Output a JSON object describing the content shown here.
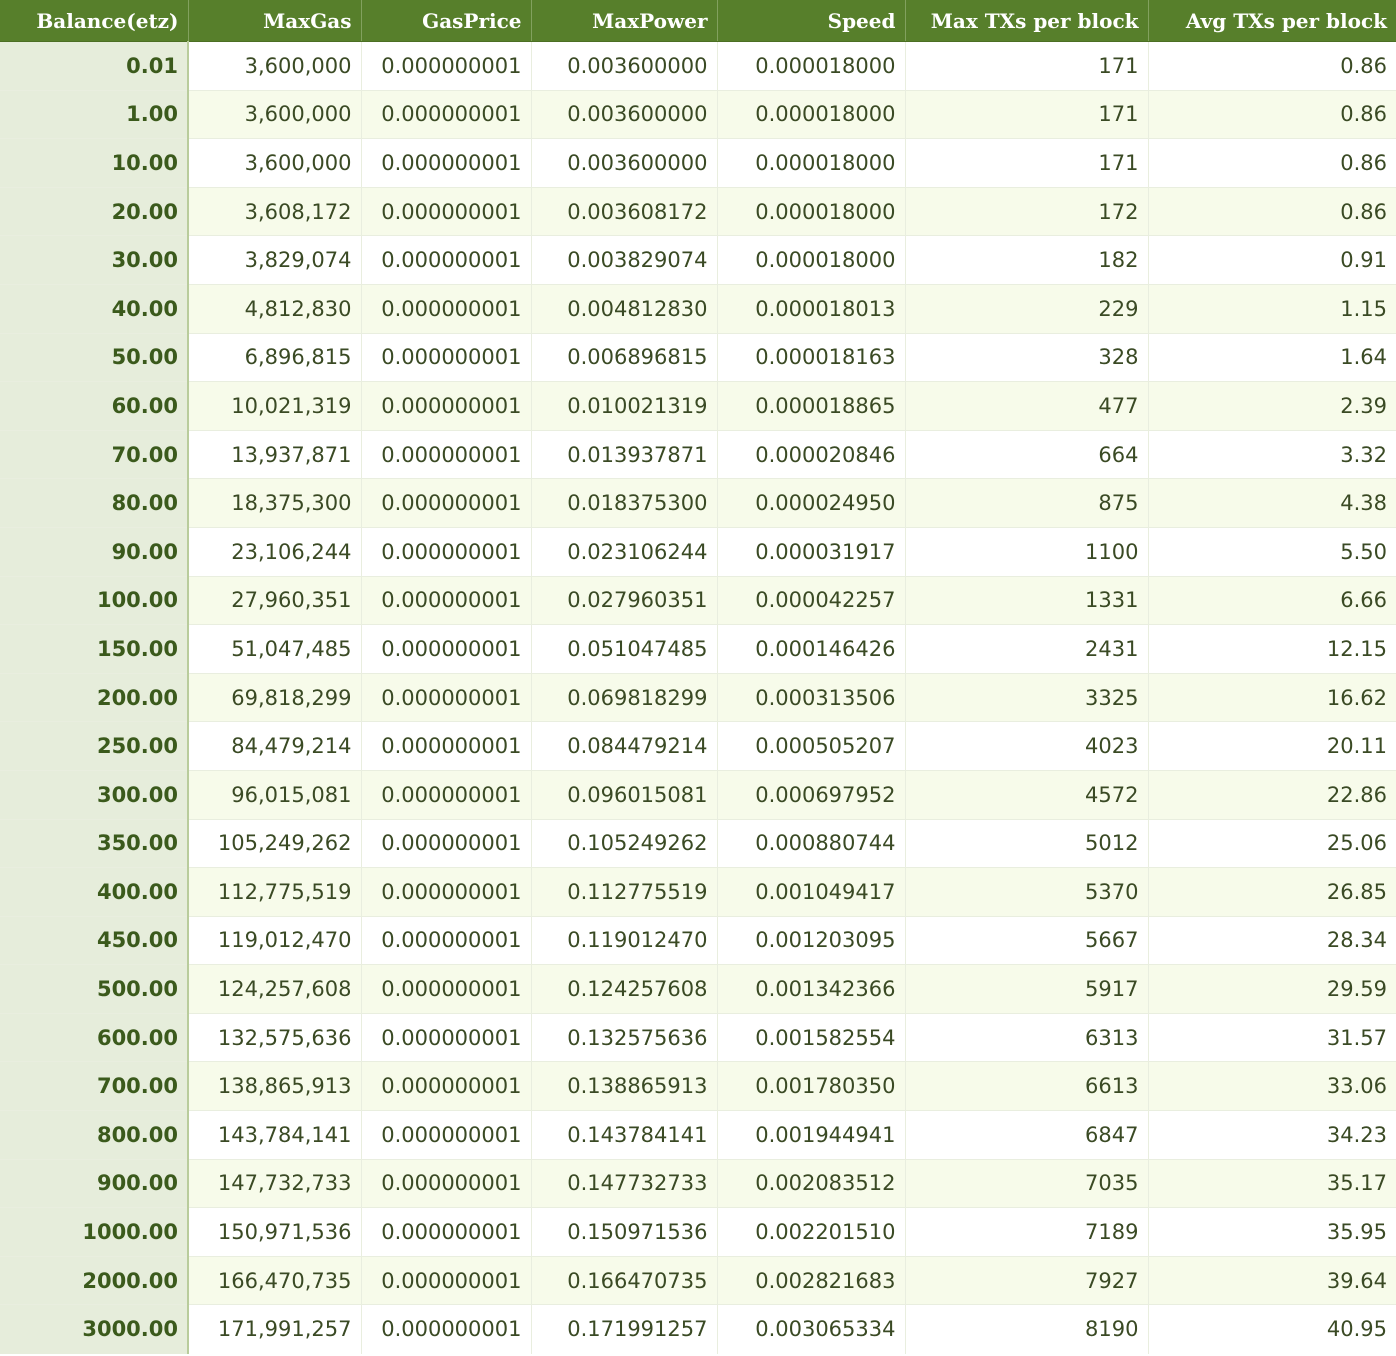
{
  "table": {
    "headers": [
      "Balance(etz)",
      "MaxGas",
      "GasPrice",
      "MaxPower",
      "Speed",
      "Max TXs per block",
      "Avg TXs per block"
    ],
    "rows": [
      [
        "0.01",
        "3,600,000",
        "0.000000001",
        "0.003600000",
        "0.000018000",
        "171",
        "0.86"
      ],
      [
        "1.00",
        "3,600,000",
        "0.000000001",
        "0.003600000",
        "0.000018000",
        "171",
        "0.86"
      ],
      [
        "10.00",
        "3,600,000",
        "0.000000001",
        "0.003600000",
        "0.000018000",
        "171",
        "0.86"
      ],
      [
        "20.00",
        "3,608,172",
        "0.000000001",
        "0.003608172",
        "0.000018000",
        "172",
        "0.86"
      ],
      [
        "30.00",
        "3,829,074",
        "0.000000001",
        "0.003829074",
        "0.000018000",
        "182",
        "0.91"
      ],
      [
        "40.00",
        "4,812,830",
        "0.000000001",
        "0.004812830",
        "0.000018013",
        "229",
        "1.15"
      ],
      [
        "50.00",
        "6,896,815",
        "0.000000001",
        "0.006896815",
        "0.000018163",
        "328",
        "1.64"
      ],
      [
        "60.00",
        "10,021,319",
        "0.000000001",
        "0.010021319",
        "0.000018865",
        "477",
        "2.39"
      ],
      [
        "70.00",
        "13,937,871",
        "0.000000001",
        "0.013937871",
        "0.000020846",
        "664",
        "3.32"
      ],
      [
        "80.00",
        "18,375,300",
        "0.000000001",
        "0.018375300",
        "0.000024950",
        "875",
        "4.38"
      ],
      [
        "90.00",
        "23,106,244",
        "0.000000001",
        "0.023106244",
        "0.000031917",
        "1100",
        "5.50"
      ],
      [
        "100.00",
        "27,960,351",
        "0.000000001",
        "0.027960351",
        "0.000042257",
        "1331",
        "6.66"
      ],
      [
        "150.00",
        "51,047,485",
        "0.000000001",
        "0.051047485",
        "0.000146426",
        "2431",
        "12.15"
      ],
      [
        "200.00",
        "69,818,299",
        "0.000000001",
        "0.069818299",
        "0.000313506",
        "3325",
        "16.62"
      ],
      [
        "250.00",
        "84,479,214",
        "0.000000001",
        "0.084479214",
        "0.000505207",
        "4023",
        "20.11"
      ],
      [
        "300.00",
        "96,015,081",
        "0.000000001",
        "0.096015081",
        "0.000697952",
        "4572",
        "22.86"
      ],
      [
        "350.00",
        "105,249,262",
        "0.000000001",
        "0.105249262",
        "0.000880744",
        "5012",
        "25.06"
      ],
      [
        "400.00",
        "112,775,519",
        "0.000000001",
        "0.112775519",
        "0.001049417",
        "5370",
        "26.85"
      ],
      [
        "450.00",
        "119,012,470",
        "0.000000001",
        "0.119012470",
        "0.001203095",
        "5667",
        "28.34"
      ],
      [
        "500.00",
        "124,257,608",
        "0.000000001",
        "0.124257608",
        "0.001342366",
        "5917",
        "29.59"
      ],
      [
        "600.00",
        "132,575,636",
        "0.000000001",
        "0.132575636",
        "0.001582554",
        "6313",
        "31.57"
      ],
      [
        "700.00",
        "138,865,913",
        "0.000000001",
        "0.138865913",
        "0.001780350",
        "6613",
        "33.06"
      ],
      [
        "800.00",
        "143,784,141",
        "0.000000001",
        "0.143784141",
        "0.001944941",
        "6847",
        "34.23"
      ],
      [
        "900.00",
        "147,732,733",
        "0.000000001",
        "0.147732733",
        "0.002083512",
        "7035",
        "35.17"
      ],
      [
        "1000.00",
        "150,971,536",
        "0.000000001",
        "0.150971536",
        "0.002201510",
        "7189",
        "35.95"
      ],
      [
        "2000.00",
        "166,470,735",
        "0.000000001",
        "0.166470735",
        "0.002821683",
        "7927",
        "39.64"
      ],
      [
        "3000.00",
        "171,991,257",
        "0.000000001",
        "0.171991257",
        "0.003065334",
        "8190",
        "40.95"
      ]
    ]
  },
  "colors": {
    "header_bg": "#577f2b",
    "header_text": "#ffffff",
    "balance_col_bg": "#e6eddb",
    "row_alt_bg": "#f7fbea",
    "text": "#3a4a24"
  }
}
